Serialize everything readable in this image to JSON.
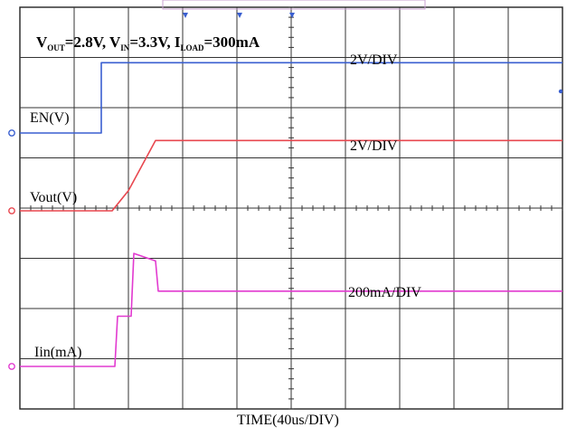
{
  "chart_data": {
    "type": "line",
    "title_parts": {
      "vout": "V",
      "vout_sub": "OUT",
      "vout_val": "=2.8V, ",
      "vin": "V",
      "vin_sub": "IN",
      "vin_val": "=3.3V, ",
      "iload": "I",
      "iload_sub": "LOAD",
      "iload_val": "=300mA"
    },
    "xlabel": "TIME(40us/DIV)",
    "x_unit": "us",
    "x_per_div": 40,
    "xlim": [
      0,
      400
    ],
    "divisions": {
      "x": 10,
      "y": 8
    },
    "grid": true,
    "series": [
      {
        "name": "EN(V)",
        "scale": "2V/DIV",
        "color": "#3a5fd0",
        "x": [
          0,
          60,
          60,
          400
        ],
        "y": [
          0,
          0,
          2.8,
          2.8
        ]
      },
      {
        "name": "Vout(V)",
        "scale": "2V/DIV",
        "color": "#e8474f",
        "x": [
          0,
          68,
          80,
          100,
          400
        ],
        "y": [
          0,
          0,
          0.8,
          2.8,
          2.8
        ]
      },
      {
        "name": "Iin(mA)",
        "scale": "200mA/DIV",
        "color": "#e23ad0",
        "x": [
          0,
          70,
          72,
          82,
          84,
          100,
          102,
          400
        ],
        "y": [
          0,
          0,
          200,
          200,
          450,
          420,
          300,
          300
        ]
      }
    ]
  }
}
